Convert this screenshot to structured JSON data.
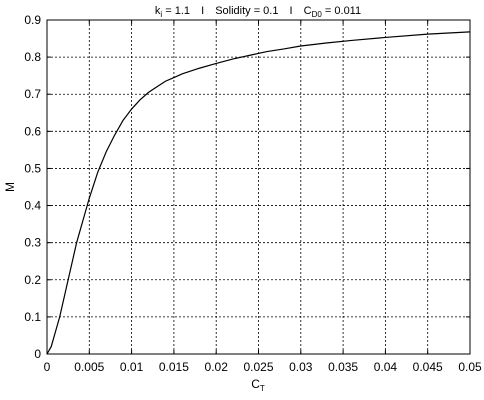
{
  "chart_data": {
    "type": "line",
    "title": {
      "ki_main": "k",
      "ki_sub": "i",
      "ki_value": " = 1.1",
      "sep1": "I",
      "solidity": "Solidity = 0.1",
      "sep2": "I",
      "cd_main": "C",
      "cd_sub": "D0",
      "cd_value": "  = 0.011"
    },
    "xlabel": {
      "main": "C",
      "sub": "T"
    },
    "ylabel": "M",
    "xlim": [
      0,
      0.05
    ],
    "ylim": [
      0,
      0.9
    ],
    "xticks": [
      "0",
      "0.005",
      "0.01",
      "0.015",
      "0.02",
      "0.025",
      "0.03",
      "0.035",
      "0.04",
      "0.045",
      "0.05"
    ],
    "yticks": [
      "0",
      "0.1",
      "0.2",
      "0.3",
      "0.4",
      "0.5",
      "0.6",
      "0.7",
      "0.8",
      "0.9"
    ],
    "grid": true,
    "series": [
      {
        "x": [
          0,
          0.0005,
          0.001,
          0.0015,
          0.002,
          0.0025,
          0.003,
          0.0035,
          0.004,
          0.0045,
          0.005,
          0.006,
          0.007,
          0.008,
          0.009,
          0.01,
          0.011,
          0.012,
          0.013,
          0.014,
          0.015,
          0.016,
          0.018,
          0.02,
          0.022,
          0.024,
          0.026,
          0.028,
          0.03,
          0.033,
          0.036,
          0.04,
          0.045,
          0.05
        ],
        "y": [
          0,
          0.02,
          0.06,
          0.1,
          0.15,
          0.2,
          0.25,
          0.3,
          0.34,
          0.38,
          0.42,
          0.49,
          0.545,
          0.59,
          0.63,
          0.66,
          0.685,
          0.705,
          0.72,
          0.735,
          0.745,
          0.755,
          0.77,
          0.783,
          0.795,
          0.805,
          0.815,
          0.822,
          0.83,
          0.838,
          0.845,
          0.853,
          0.862,
          0.868
        ]
      }
    ]
  },
  "colors": {
    "line": "#000000",
    "grid": "#000000",
    "background": "#ffffff"
  }
}
